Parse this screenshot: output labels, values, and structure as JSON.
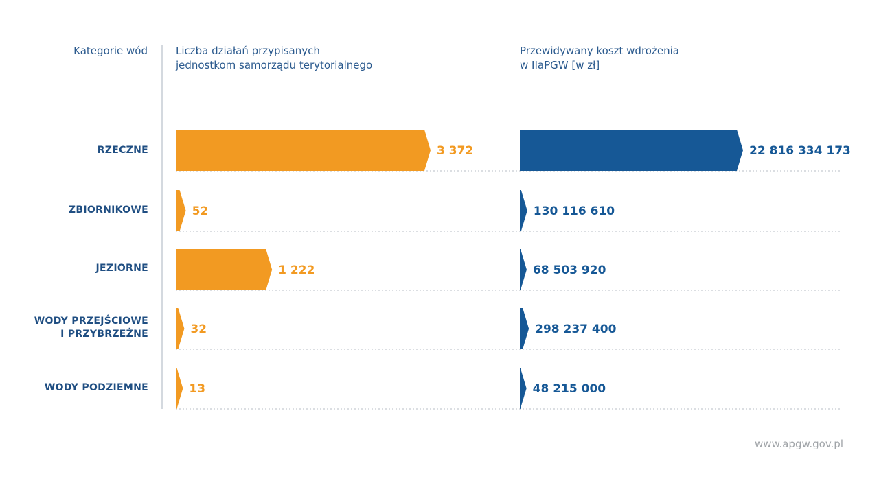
{
  "headers": {
    "category": "Kategorie wód",
    "count_line1": "Liczba działań przypisanych",
    "count_line2": "jednostkom samorządu terytorialnego",
    "cost_line1": "Przewidywany koszt wdrożenia",
    "cost_line2": "w IIaPGW [w zł]"
  },
  "rows": [
    {
      "line1": "RZECZNE",
      "line2": ""
    },
    {
      "line1": "ZBIORNIKOWE",
      "line2": ""
    },
    {
      "line1": "JEZIORNE",
      "line2": ""
    },
    {
      "line1": "WODY PRZEJŚCIOWE",
      "line2": "I PRZYBRZEŻNE"
    },
    {
      "line1": "WODY PODZIEMNE",
      "line2": ""
    }
  ],
  "footer": "www.apgw.gov.pl",
  "colors": {
    "count": "#f29a22",
    "cost": "#165896",
    "label": "#1f4e82",
    "grid": "#cfd3d8"
  },
  "chart_data": {
    "type": "bar",
    "categories": [
      "RZECZNE",
      "ZBIORNIKOWE",
      "JEZIORNE",
      "WODY PRZEJŚCIOWE I PRZYBRZEŻNE",
      "WODY PODZIEMNE"
    ],
    "series": [
      {
        "values": [
          3372,
          52,
          1222,
          32,
          13
        ],
        "labels": [
          "3 372",
          "52",
          "1 222",
          "32",
          "13"
        ]
      },
      {
        "values": [
          22816334173,
          130116610,
          68503920,
          298237400,
          48215000
        ],
        "labels": [
          "22 816 334 173",
          "130 116 610",
          "68 503 920",
          "298 237 400",
          "48 215 000"
        ]
      }
    ]
  }
}
